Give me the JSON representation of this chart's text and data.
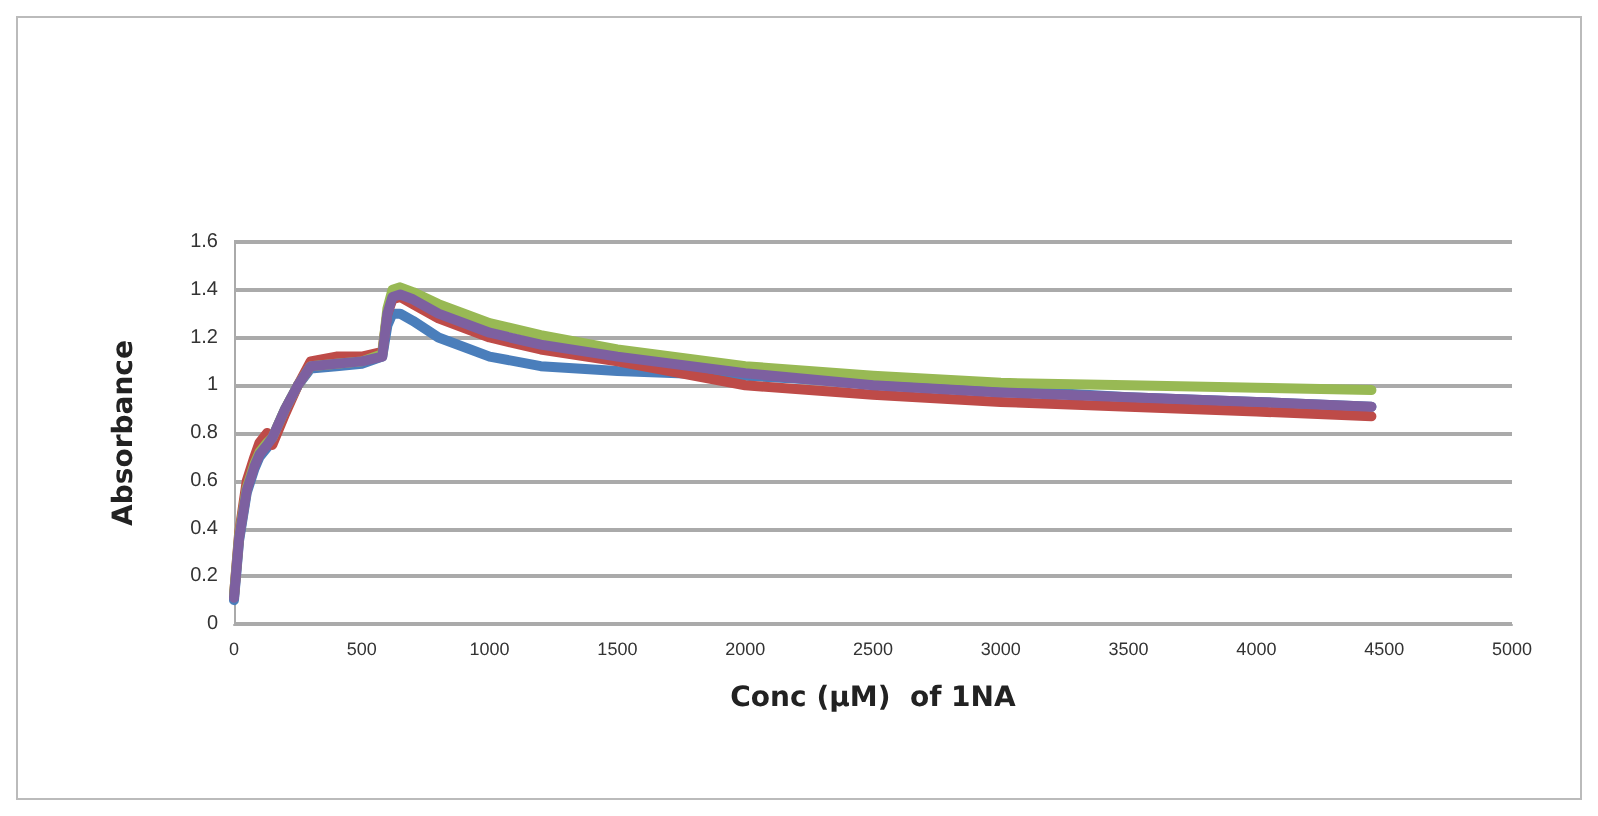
{
  "chart_data": {
    "type": "line",
    "xlabel": "Conc (µM)  of 1NA",
    "ylabel": "Absorbance",
    "x": [
      0,
      20,
      50,
      80,
      100,
      130,
      150,
      200,
      250,
      300,
      400,
      500,
      580,
      600,
      620,
      650,
      700,
      800,
      1000,
      1200,
      1500,
      2000,
      2500,
      3000,
      3500,
      4000,
      4450
    ],
    "series": [
      {
        "color": "#4a7ebb",
        "values": [
          0.1,
          0.35,
          0.55,
          0.65,
          0.7,
          0.74,
          0.78,
          0.9,
          1.0,
          1.07,
          1.08,
          1.09,
          1.12,
          1.25,
          1.3,
          1.3,
          1.27,
          1.2,
          1.12,
          1.08,
          1.06,
          1.04,
          1.01,
          0.98,
          0.95,
          0.93,
          0.91
        ]
      },
      {
        "color": "#be4b48",
        "values": [
          0.12,
          0.38,
          0.6,
          0.7,
          0.76,
          0.8,
          0.75,
          0.88,
          1.0,
          1.1,
          1.12,
          1.12,
          1.14,
          1.3,
          1.36,
          1.37,
          1.34,
          1.28,
          1.2,
          1.15,
          1.1,
          1.0,
          0.96,
          0.93,
          0.91,
          0.89,
          0.87
        ]
      },
      {
        "color": "#98b954",
        "values": [
          0.12,
          0.37,
          0.57,
          0.67,
          0.72,
          0.76,
          0.78,
          0.9,
          1.0,
          1.08,
          1.09,
          1.1,
          1.13,
          1.32,
          1.4,
          1.41,
          1.39,
          1.34,
          1.26,
          1.21,
          1.15,
          1.08,
          1.04,
          1.01,
          1.0,
          0.99,
          0.98
        ]
      },
      {
        "color": "#7d60a0",
        "values": [
          0.11,
          0.36,
          0.56,
          0.66,
          0.71,
          0.75,
          0.78,
          0.9,
          1.0,
          1.08,
          1.09,
          1.1,
          1.12,
          1.3,
          1.37,
          1.38,
          1.36,
          1.3,
          1.22,
          1.17,
          1.12,
          1.05,
          1.0,
          0.97,
          0.95,
          0.93,
          0.91
        ]
      }
    ],
    "xlim": [
      0,
      5000
    ],
    "xticks": [
      0,
      500,
      1000,
      1500,
      2000,
      2500,
      3000,
      3500,
      4000,
      4500,
      5000
    ],
    "ylim": [
      0,
      1.6
    ],
    "yticks": [
      0,
      0.2,
      0.4,
      0.6,
      0.8,
      1,
      1.2,
      1.4,
      1.6
    ],
    "grid": "y",
    "marker": "none",
    "line_style": "solid"
  }
}
